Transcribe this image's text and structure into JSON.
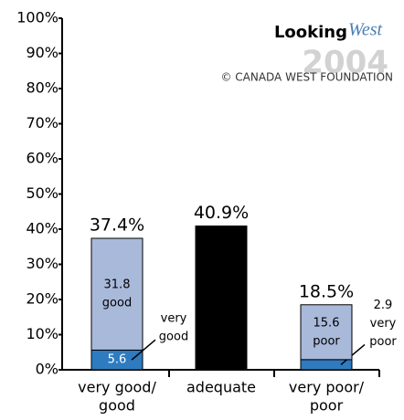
{
  "chart_data": {
    "type": "stacked_bar",
    "logo": {
      "word1": "Looking",
      "word2": "West",
      "year": "2004",
      "credit": "© CANADA WEST FOUNDATION"
    },
    "categories": [
      [
        "very good/",
        "good"
      ],
      [
        "adequate"
      ],
      [
        "very poor/",
        "poor"
      ]
    ],
    "totals": [
      37.4,
      40.9,
      18.5
    ],
    "total_labels": [
      "37.4%",
      "40.9%",
      "18.5%"
    ],
    "bars": [
      {
        "segments": [
          {
            "value": 5.6,
            "color": "#2e7bc0",
            "name": [
              "very",
              "good"
            ],
            "outside": [
              "name"
            ]
          },
          {
            "value": 31.8,
            "color": "#a9b9da",
            "name": [
              "good"
            ],
            "outside": []
          }
        ]
      },
      {
        "segments": [
          {
            "value": 40.9,
            "color": "#000000"
          }
        ]
      },
      {
        "segments": [
          {
            "value": 2.9,
            "color": "#2e7bc0",
            "name": [
              "very",
              "poor"
            ],
            "outside": [
              "value",
              "name"
            ]
          },
          {
            "value": 15.6,
            "color": "#a9b9da",
            "name": [
              "poor"
            ],
            "outside": []
          }
        ]
      }
    ],
    "ylim": [
      0,
      100
    ],
    "yticks": [
      {
        "value": 0,
        "label": "0%"
      },
      {
        "value": 10,
        "label": "10%"
      },
      {
        "value": 20,
        "label": "20%"
      },
      {
        "value": 30,
        "label": "30%"
      },
      {
        "value": 40,
        "label": "40%"
      },
      {
        "value": 50,
        "label": "50%"
      },
      {
        "value": 60,
        "label": "60%"
      },
      {
        "value": 70,
        "label": "70%"
      },
      {
        "value": 80,
        "label": "80%"
      },
      {
        "value": 90,
        "label": "90%"
      },
      {
        "value": 100,
        "label": "100%"
      }
    ],
    "grid": false
  }
}
